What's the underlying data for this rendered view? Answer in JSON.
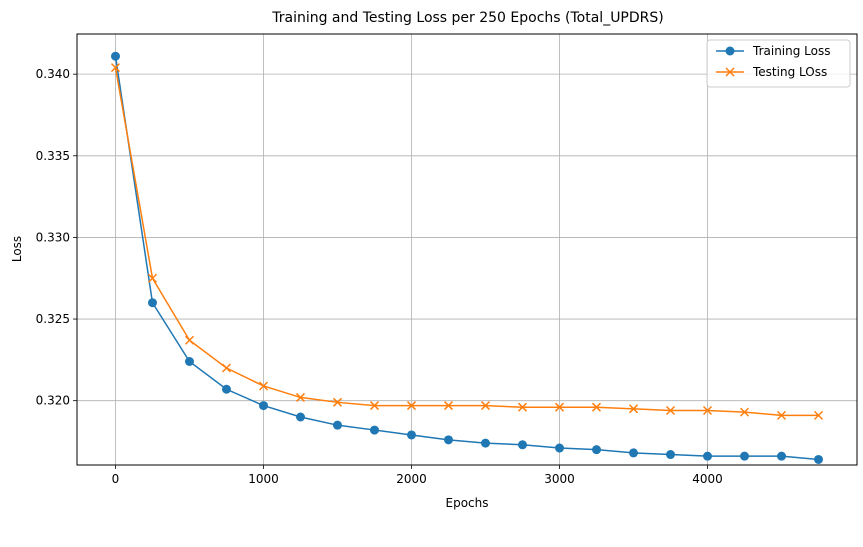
{
  "chart_data": {
    "type": "line",
    "title": "Training and Testing Loss per 250 Epochs (Total_UPDRS)",
    "xlabel": "Epochs",
    "ylabel": "Loss",
    "x": [
      0,
      250,
      500,
      750,
      1000,
      1250,
      1500,
      1750,
      2000,
      2250,
      2500,
      2750,
      3000,
      3250,
      3500,
      3750,
      4000,
      4250,
      4500,
      4750
    ],
    "series": [
      {
        "name": "Training Loss",
        "color": "#1f77b4",
        "marker": "circle",
        "values": [
          0.3411,
          0.326,
          0.3224,
          0.3207,
          0.3197,
          0.319,
          0.3185,
          0.3182,
          0.3179,
          0.3176,
          0.3174,
          0.3173,
          0.3171,
          0.317,
          0.3168,
          0.3167,
          0.3166,
          0.3166,
          0.3166,
          0.3164
        ]
      },
      {
        "name": "Testing LOss",
        "color": "#ff7f0e",
        "marker": "x",
        "values": [
          0.3404,
          0.3275,
          0.3237,
          0.322,
          0.3209,
          0.3202,
          0.3199,
          0.3197,
          0.3197,
          0.3197,
          0.3197,
          0.3196,
          0.3196,
          0.3196,
          0.3195,
          0.3194,
          0.3194,
          0.3193,
          0.3191,
          0.3191
        ]
      }
    ],
    "xlim": [
      -260,
      5010
    ],
    "ylim": [
      0.31606,
      0.34246
    ],
    "xticks": [
      "0",
      "1000",
      "2000",
      "3000",
      "4000"
    ],
    "xtick_values": [
      0,
      1000,
      2000,
      3000,
      4000
    ],
    "yticks": [
      "0.320",
      "0.325",
      "0.330",
      "0.335",
      "0.340"
    ],
    "ytick_values": [
      0.32,
      0.325,
      0.33,
      0.335,
      0.34
    ],
    "grid": true,
    "legend_position": "top-right"
  }
}
